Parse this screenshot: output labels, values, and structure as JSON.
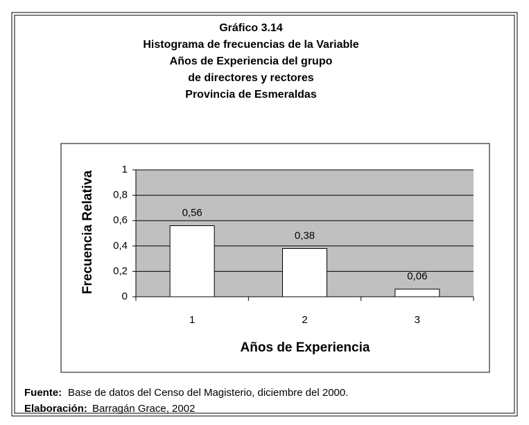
{
  "chart_data": {
    "type": "bar",
    "title": [
      "Gráfico 3.14",
      "Histograma de frecuencias de la Variable",
      "Años de Experiencia del grupo",
      "de directores y rectores",
      "Provincia de Esmeraldas"
    ],
    "categories": [
      "1",
      "2",
      "3"
    ],
    "values": [
      0.56,
      0.38,
      0.06
    ],
    "value_labels": [
      "0,56",
      "0,38",
      "0,06"
    ],
    "color": "#ffffff",
    "ylim": [
      0,
      1
    ],
    "yticks": [
      0,
      {
        "value": 0.2,
        "label": "0,2"
      },
      {
        "value": 0.4,
        "label": "0,4"
      },
      {
        "value": 0.6,
        "label": "0,6"
      },
      {
        "value": 0.8,
        "label": "0,8"
      },
      1
    ],
    "grid": true,
    "x_label": "Años de Experiencia",
    "y_label": "Frecuencia Relativa"
  },
  "footer": {
    "source_label": "Fuente:",
    "source": "Base de datos del Censo del Magisterio, diciembre del 2000.",
    "credit_label": "Elaboración:",
    "credit": "Barragán Grace, 2002"
  }
}
